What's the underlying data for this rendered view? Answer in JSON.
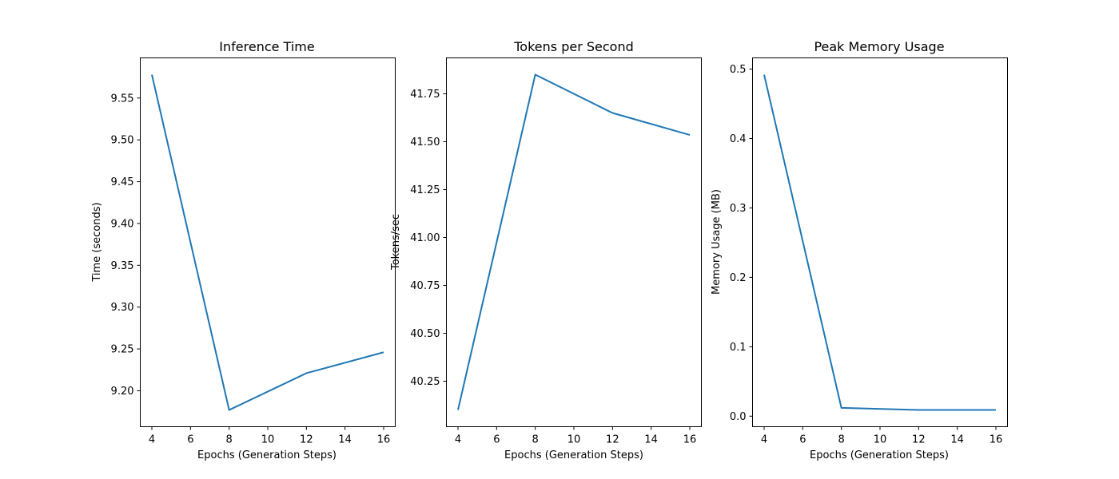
{
  "chart_data": [
    {
      "type": "line",
      "title": "Inference Time",
      "xlabel": "Epochs (Generation Steps)",
      "ylabel": "Time (seconds)",
      "x": [
        4,
        8,
        12,
        16
      ],
      "series": [
        {
          "values": [
            9.578,
            9.177,
            9.221,
            9.246
          ],
          "color": "#1f77b4"
        }
      ],
      "xticks": [
        4,
        6,
        8,
        10,
        12,
        14,
        16
      ],
      "yticks": [
        9.2,
        9.25,
        9.3,
        9.35,
        9.4,
        9.45,
        9.5,
        9.55
      ],
      "ytick_labels": [
        "9.20",
        "9.25",
        "9.30",
        "9.35",
        "9.40",
        "9.45",
        "9.50",
        "9.55"
      ],
      "xlim": [
        3.4,
        16.6
      ],
      "ylim": [
        9.157,
        9.598
      ],
      "grid": false
    },
    {
      "type": "line",
      "title": "Tokens per Second",
      "xlabel": "Epochs (Generation Steps)",
      "ylabel": "Tokens/sec",
      "x": [
        4,
        8,
        12,
        16
      ],
      "series": [
        {
          "values": [
            40.1,
            41.85,
            41.65,
            41.535
          ],
          "color": "#1f77b4"
        }
      ],
      "xticks": [
        4,
        6,
        8,
        10,
        12,
        14,
        16
      ],
      "yticks": [
        40.25,
        40.5,
        40.75,
        41.0,
        41.25,
        41.5,
        41.75
      ],
      "ytick_labels": [
        "40.25",
        "40.50",
        "40.75",
        "41.00",
        "41.25",
        "41.50",
        "41.75"
      ],
      "xlim": [
        3.4,
        16.6
      ],
      "ylim": [
        40.0125,
        41.9375
      ],
      "grid": false
    },
    {
      "type": "line",
      "title": "Peak Memory Usage",
      "xlabel": "Epochs (Generation Steps)",
      "ylabel": "Memory Usage (MB)",
      "x": [
        4,
        8,
        12,
        16
      ],
      "series": [
        {
          "values": [
            0.492,
            0.012,
            0.009,
            0.009
          ],
          "color": "#1f77b4"
        }
      ],
      "xticks": [
        4,
        6,
        8,
        10,
        12,
        14,
        16
      ],
      "yticks": [
        0.0,
        0.1,
        0.2,
        0.3,
        0.4,
        0.5
      ],
      "ytick_labels": [
        "0.0",
        "0.1",
        "0.2",
        "0.3",
        "0.4",
        "0.5"
      ],
      "xlim": [
        3.4,
        16.6
      ],
      "ylim": [
        -0.0152,
        0.5162
      ],
      "grid": false
    }
  ]
}
